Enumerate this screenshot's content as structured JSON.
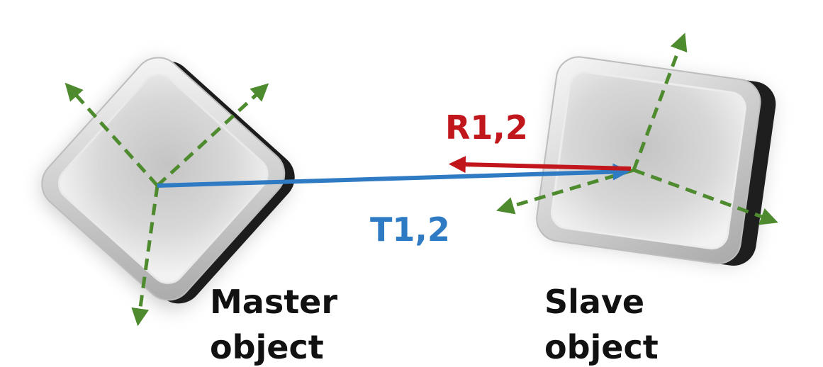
{
  "labels": {
    "rotation": "R1,2",
    "translation": "T1,2",
    "master_line1": "Master",
    "master_line2": "object",
    "slave_line1": "Slave",
    "slave_line2": "object"
  },
  "colors": {
    "axis": "#4e8a2e",
    "translation": "#2e7bc4",
    "rotation": "#c0161c",
    "text": "#111111"
  }
}
